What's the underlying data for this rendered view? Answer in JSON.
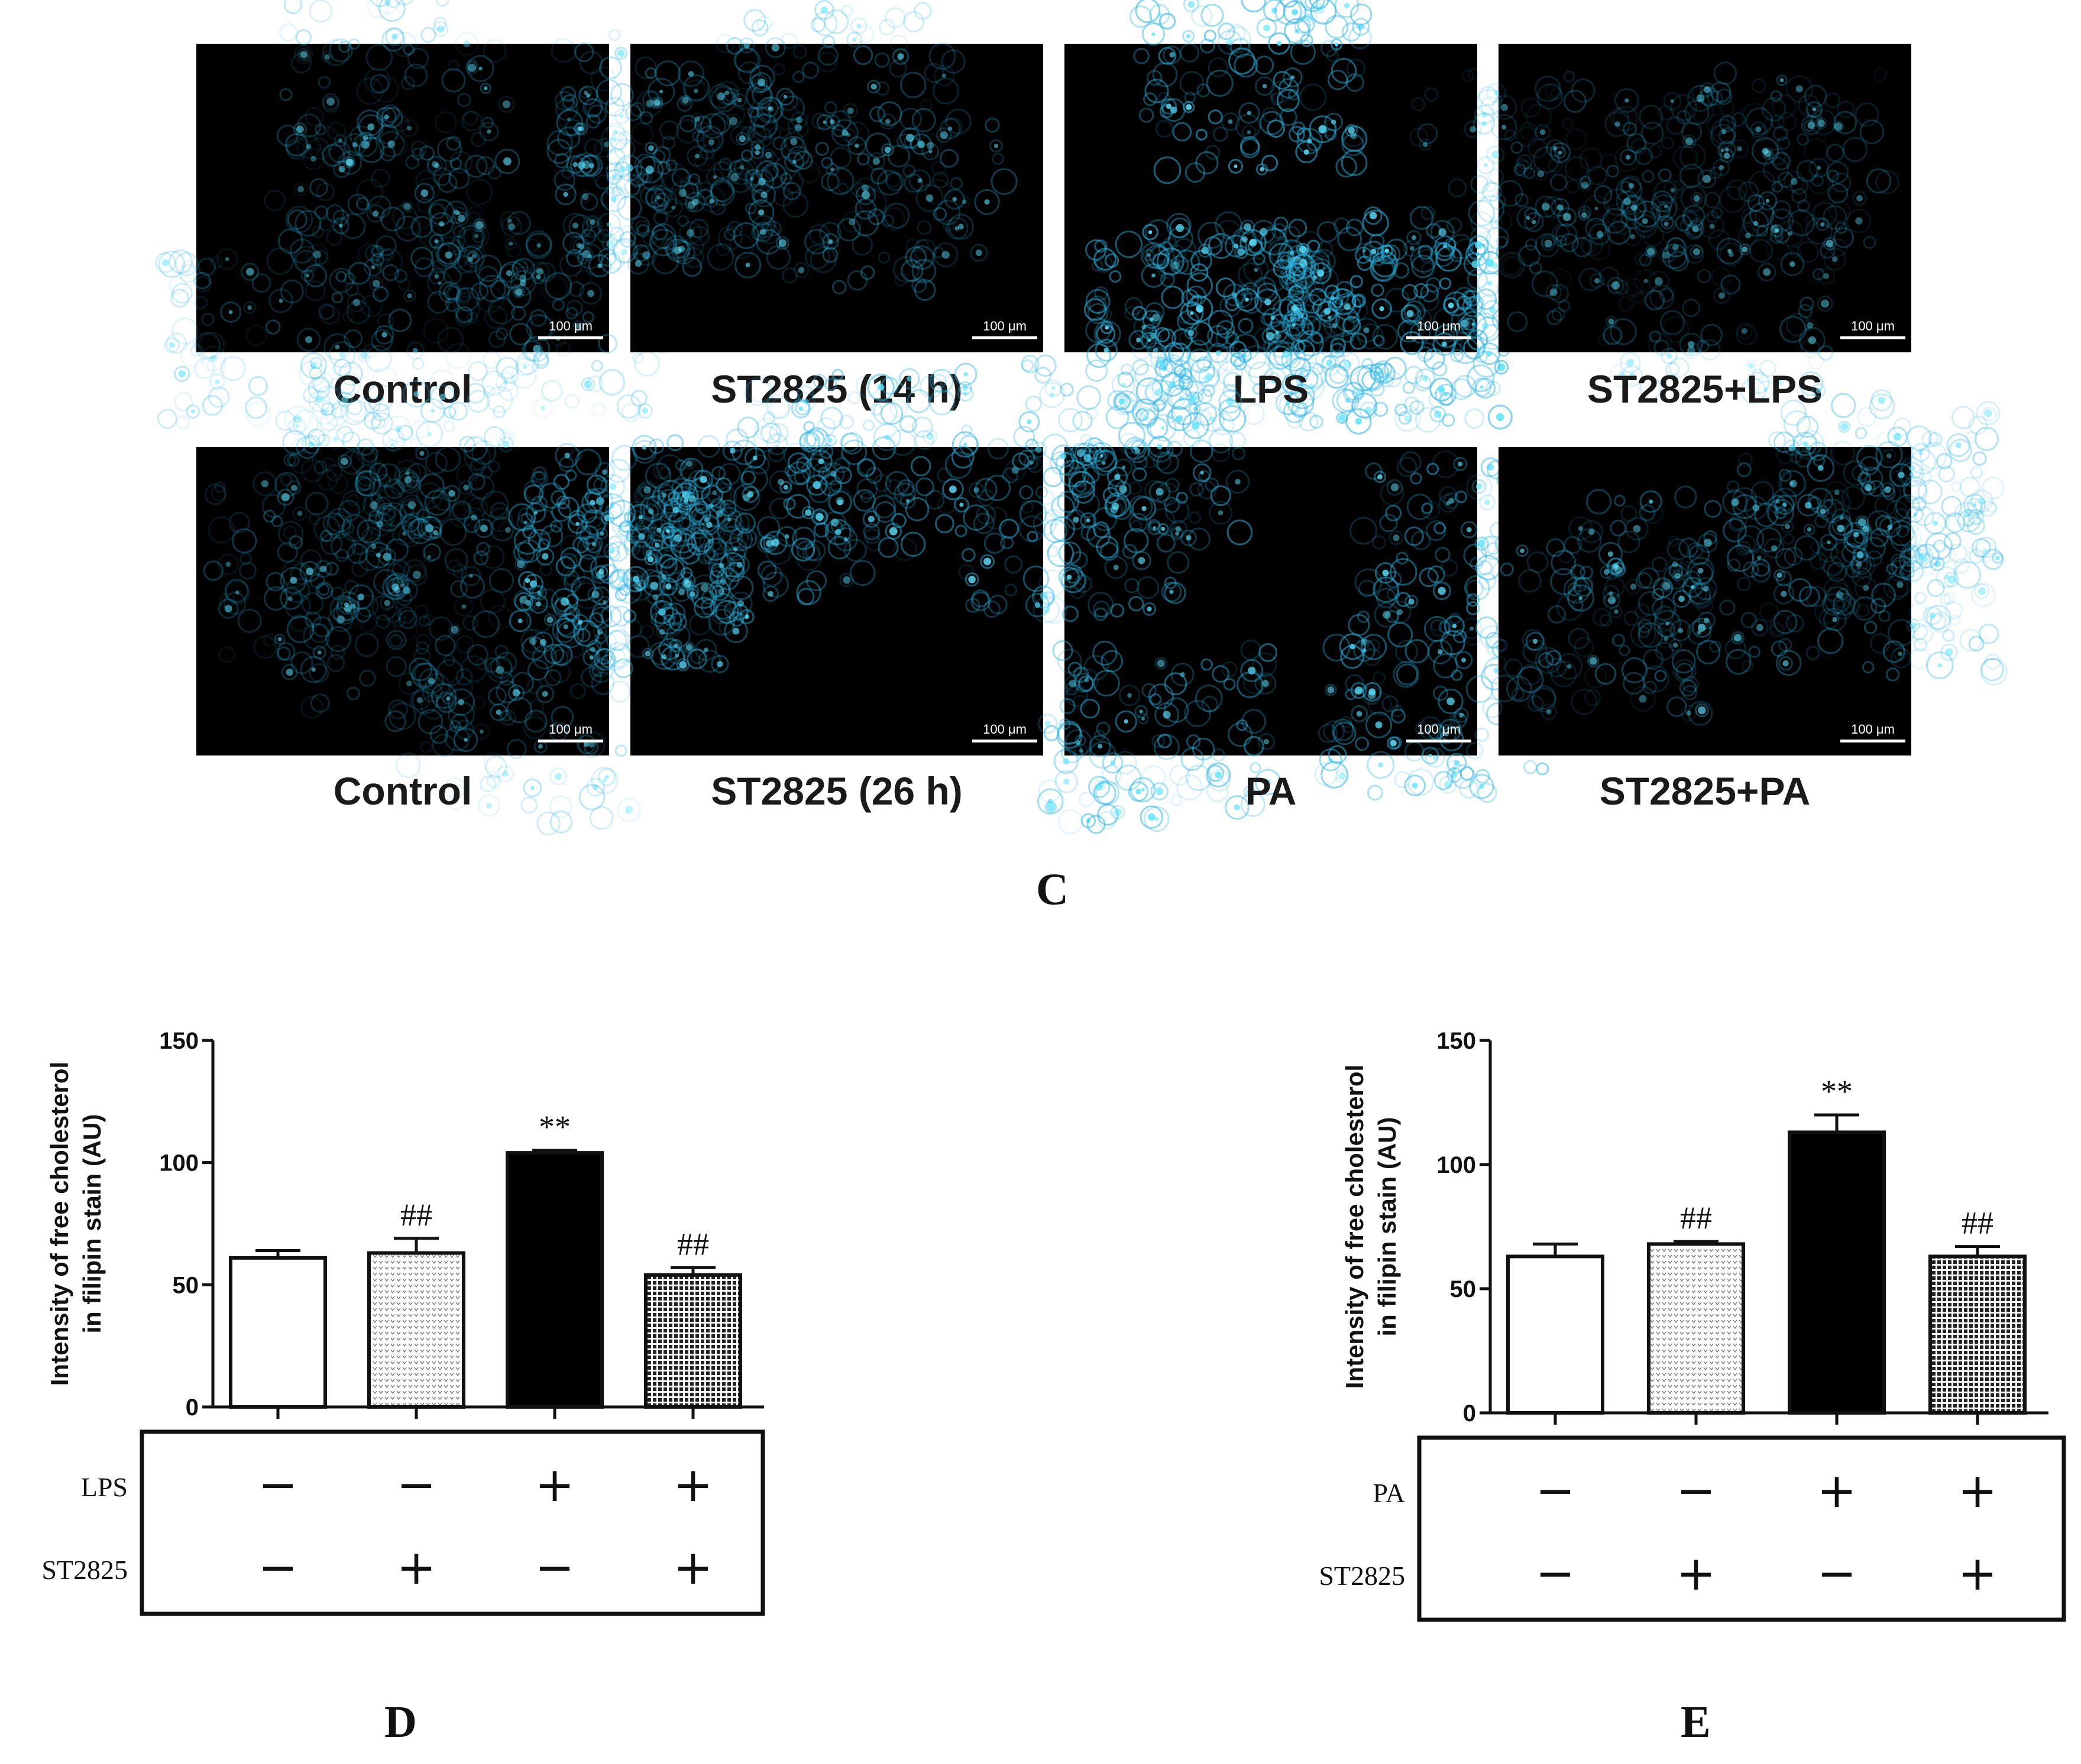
{
  "panels_row1": [
    {
      "label": "Control",
      "scale": "100 μm",
      "brightness": 0.5
    },
    {
      "label": "ST2825 (14 h)",
      "scale": "100 μm",
      "brightness": 0.55
    },
    {
      "label": "LPS",
      "scale": "100 μm",
      "brightness": 0.95
    },
    {
      "label": "ST2825+LPS",
      "scale": "100 μm",
      "brightness": 0.45
    }
  ],
  "panels_row2": [
    {
      "label": "Control",
      "scale": "100 μm",
      "brightness": 0.5
    },
    {
      "label": "ST2825 (26 h)",
      "scale": "100 μm",
      "brightness": 0.8
    },
    {
      "label": "PA",
      "scale": "100 μm",
      "brightness": 0.85
    },
    {
      "label": "ST2825+PA",
      "scale": "100 μm",
      "brightness": 0.6
    }
  ],
  "letters": {
    "c": "C",
    "d": "D",
    "e": "E"
  },
  "chart_data": [
    {
      "type": "bar",
      "ylabel_line1": "Intensity of free cholesterol",
      "ylabel_line2": "in filipin stain (AU)",
      "ylim": [
        0,
        150
      ],
      "yticks": [
        "0",
        "50",
        "100",
        "150"
      ],
      "values": [
        61,
        63,
        104,
        54
      ],
      "errors": [
        3,
        6,
        1,
        3
      ],
      "annotations": [
        "",
        "##",
        "**",
        "##"
      ],
      "fills": [
        "white",
        "dots",
        "black",
        "grid"
      ],
      "treatment_rows": [
        {
          "name": "LPS",
          "signs": [
            "−",
            "−",
            "+",
            "+"
          ]
        },
        {
          "name": "ST2825",
          "signs": [
            "−",
            "+",
            "−",
            "+"
          ]
        }
      ]
    },
    {
      "type": "bar",
      "ylabel_line1": "Intensity of free cholesterol",
      "ylabel_line2": "in filipin stain (AU)",
      "ylim": [
        0,
        150
      ],
      "yticks": [
        "0",
        "50",
        "100",
        "150"
      ],
      "values": [
        63,
        68,
        113,
        63
      ],
      "errors": [
        5,
        1,
        7,
        4
      ],
      "annotations": [
        "",
        "##",
        "**",
        "##"
      ],
      "fills": [
        "white",
        "dots",
        "black",
        "grid"
      ],
      "treatment_rows": [
        {
          "name": "PA",
          "signs": [
            "−",
            "−",
            "+",
            "+"
          ]
        },
        {
          "name": "ST2825",
          "signs": [
            "−",
            "+",
            "−",
            "+"
          ]
        }
      ]
    }
  ]
}
